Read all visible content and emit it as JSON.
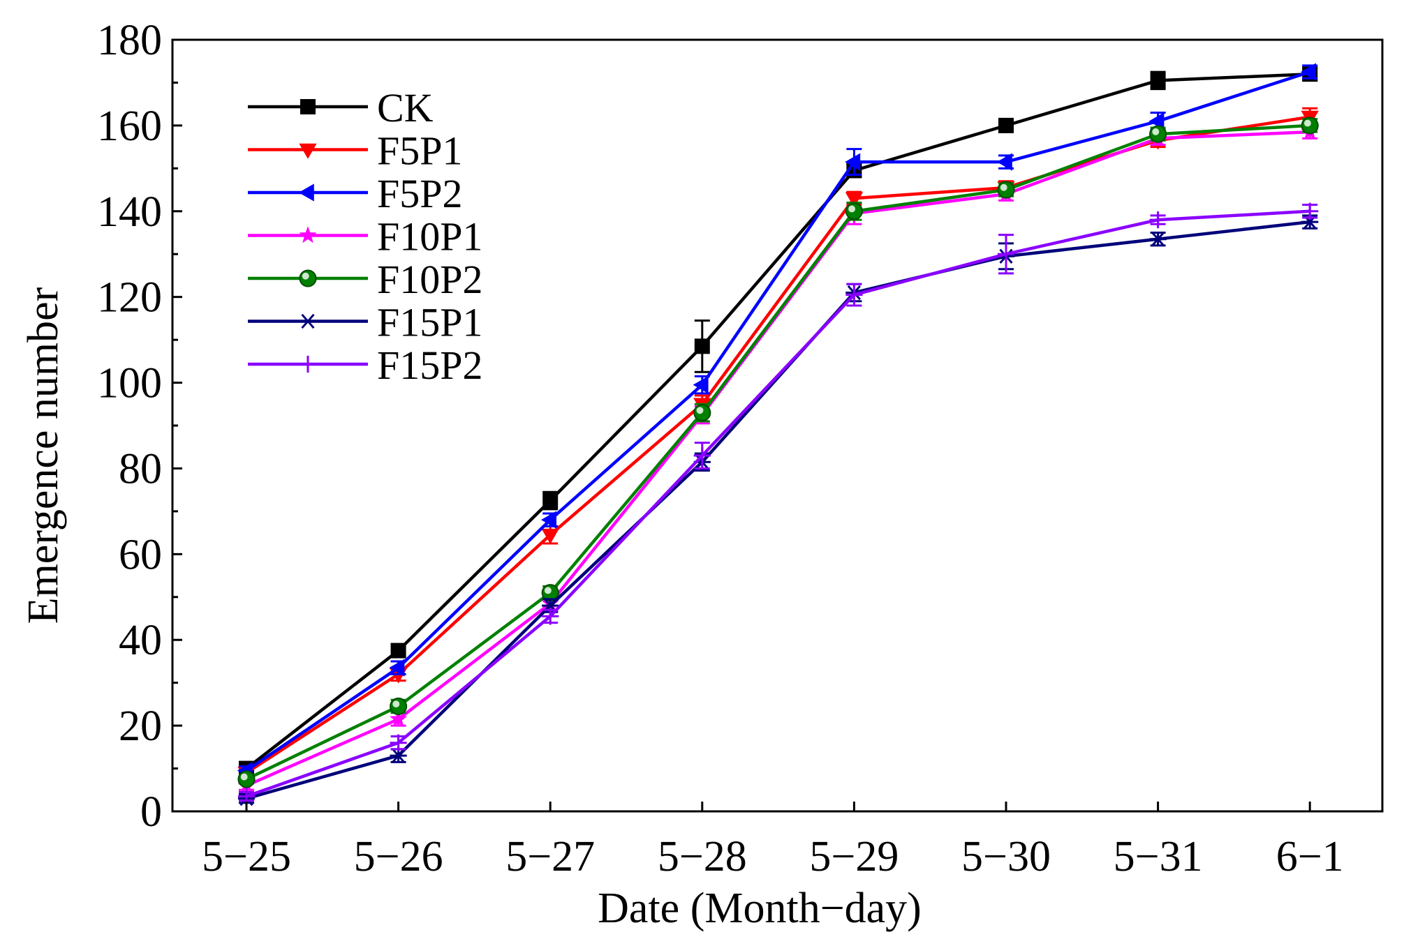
{
  "chart_data": {
    "type": "line",
    "title": "",
    "xlabel": "Date (Month−day)",
    "ylabel": "Emergence number",
    "categories": [
      "5−25",
      "5−26",
      "5−27",
      "5−28",
      "5−29",
      "5−30",
      "5−31",
      "6−1"
    ],
    "ylim": [
      0,
      180
    ],
    "yticks": [
      0,
      20,
      40,
      60,
      80,
      100,
      120,
      140,
      160,
      180
    ],
    "ytick_labels": [
      "0",
      "20",
      "40",
      "60",
      "80",
      "100",
      "120",
      "140",
      "160",
      "180"
    ],
    "grid": false,
    "legend_position": "top-left",
    "series": [
      {
        "name": "CK",
        "color": "#000000",
        "marker": "square",
        "values": [
          10,
          37.5,
          72.5,
          108.5,
          149.5,
          160,
          170.5,
          172
        ],
        "errors": [
          1,
          1.5,
          2,
          6,
          1.5,
          1.5,
          2,
          1.5
        ]
      },
      {
        "name": "F5P1",
        "color": "#ff0000",
        "marker": "triangle-down",
        "values": [
          9,
          32,
          64.5,
          95,
          143,
          145.5,
          156.5,
          162
        ],
        "errors": [
          1,
          1.5,
          2,
          2,
          1.5,
          1.5,
          1.5,
          2
        ]
      },
      {
        "name": "F5P2",
        "color": "#0000ff",
        "marker": "triangle-left",
        "values": [
          9.5,
          33.5,
          68,
          99.5,
          151.5,
          151.5,
          161,
          172.5
        ],
        "errors": [
          1,
          1.5,
          1.5,
          2,
          3,
          1.5,
          2,
          1.5
        ]
      },
      {
        "name": "F10P1",
        "color": "#ff00ff",
        "marker": "star",
        "values": [
          6,
          21.5,
          48.5,
          92.5,
          139.5,
          144,
          157,
          158.5
        ],
        "errors": [
          1,
          1.5,
          2,
          2,
          2.5,
          1.5,
          1.5,
          1.5
        ]
      },
      {
        "name": "F10P2",
        "color": "#008000",
        "marker": "circle",
        "values": [
          7.5,
          24.5,
          51,
          93,
          140,
          145,
          158,
          160
        ],
        "errors": [
          1,
          1.5,
          1.5,
          2,
          2,
          1.5,
          1.5,
          1.5
        ]
      },
      {
        "name": "F15P1",
        "color": "#00007a",
        "marker": "asterisk",
        "values": [
          3,
          13,
          48,
          81.5,
          121,
          129.5,
          133.5,
          137.5
        ],
        "errors": [
          1,
          1.5,
          1.5,
          2,
          2,
          3,
          1.5,
          1.5
        ]
      },
      {
        "name": "F15P2",
        "color": "#8a00ff",
        "marker": "plus",
        "values": [
          3.5,
          16,
          45.5,
          83,
          120.5,
          130,
          138,
          140
        ],
        "errors": [
          1,
          1.5,
          1.5,
          3,
          2.5,
          4.5,
          1,
          1.5
        ]
      }
    ]
  }
}
